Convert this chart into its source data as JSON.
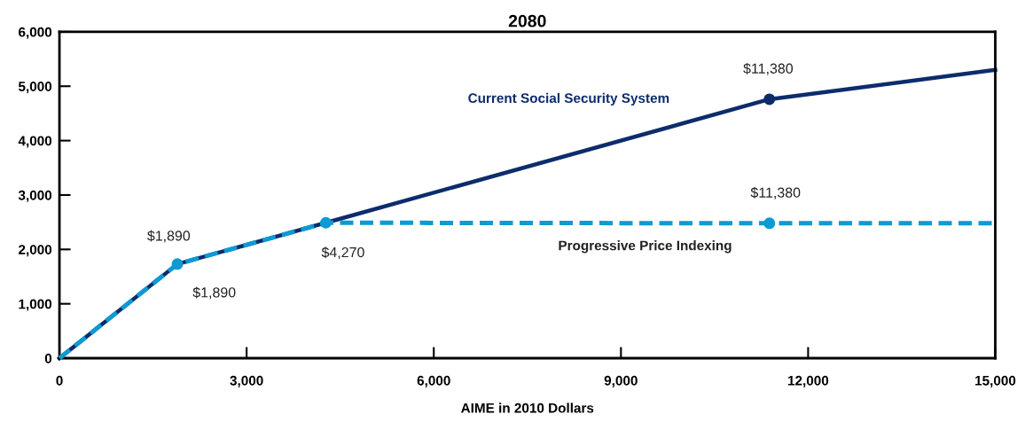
{
  "chart_data": {
    "type": "line",
    "title": "2080",
    "xlabel": "AIME in 2010 Dollars",
    "xlim": [
      0,
      15000
    ],
    "ylim": [
      0,
      6000
    ],
    "xticks": [
      0,
      {
        "value": 3000,
        "label": "3,000"
      },
      {
        "value": 6000,
        "label": "6,000"
      },
      {
        "value": 9000,
        "label": "9,000"
      },
      {
        "value": 12000,
        "label": "12,000"
      },
      {
        "value": 15000,
        "label": "15,000"
      }
    ],
    "yticks": [
      0,
      {
        "value": 1000,
        "label": "1,000"
      },
      {
        "value": 2000,
        "label": "2,000"
      },
      {
        "value": 3000,
        "label": "3,000"
      },
      {
        "value": 4000,
        "label": "4,000"
      },
      {
        "value": 5000,
        "label": "5,000"
      },
      {
        "value": 6000,
        "label": "6,000"
      }
    ],
    "grid": false,
    "legend": false,
    "series": [
      {
        "name": "Current Social Security System",
        "color": "#0d2c6c",
        "line_style": "solid",
        "marker": "none",
        "x": [
          0,
          1890,
          4270,
          11380,
          15000
        ],
        "values": [
          0,
          1730,
          2490,
          4760,
          5300
        ]
      },
      {
        "type": "scatter",
        "color": "#0d2c6c",
        "marker": "circle",
        "x": [
          11380
        ],
        "values": [
          4760
        ]
      },
      {
        "name": "Progressive Price Indexing",
        "color": "#0e9ad2",
        "line_style": "dashed",
        "marker": "none",
        "x": [
          0,
          1890,
          4270,
          11380,
          15000
        ],
        "values": [
          0,
          1730,
          2490,
          2480,
          2480
        ]
      },
      {
        "type": "scatter",
        "color": "#0e9ad2",
        "marker": "circle",
        "x": [
          1890,
          4270,
          11380
        ],
        "values": [
          1730,
          2490,
          2480
        ]
      }
    ],
    "annotations": [
      {
        "text": "$1,890",
        "x": 1890,
        "y": 1730
      },
      {
        "text": "$1,890",
        "x": 1890,
        "y": 1730
      },
      {
        "text": "$4,270",
        "x": 4270,
        "y": 2490
      },
      {
        "text": "$11,380",
        "x": 11380,
        "y": 4760
      },
      {
        "text": "$11,380",
        "x": 11380,
        "y": 2480
      }
    ]
  }
}
